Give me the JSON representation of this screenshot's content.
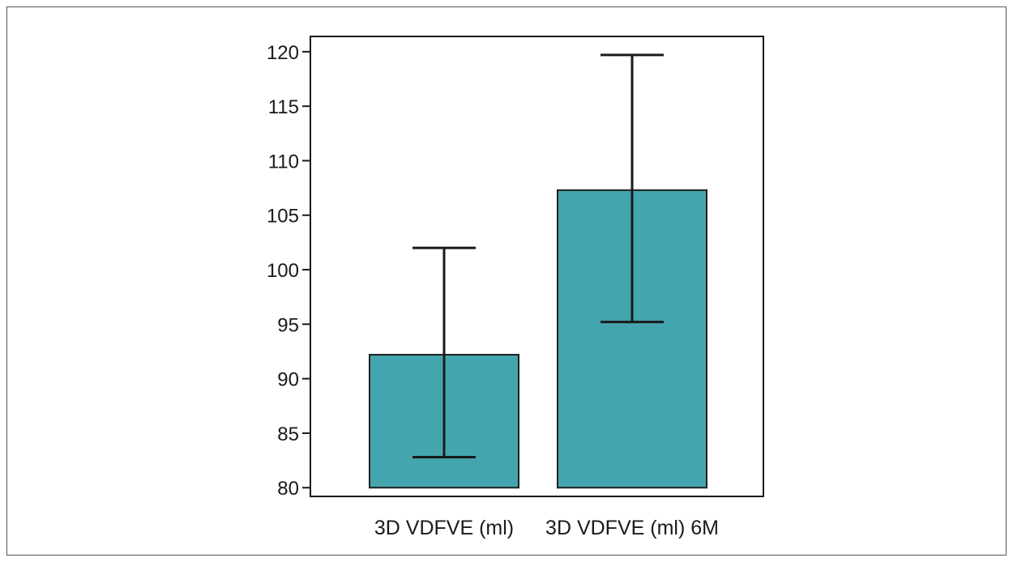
{
  "chart_data": {
    "type": "bar",
    "categories": [
      "3D VDFVE (ml)",
      "3D VDFVE (ml) 6M"
    ],
    "values": [
      92.2,
      107.3
    ],
    "error_low": [
      82.8,
      95.2
    ],
    "error_high": [
      102.0,
      119.7
    ],
    "ylim": [
      79.2,
      121.4
    ],
    "yticks": [
      80,
      85,
      90,
      95,
      100,
      105,
      110,
      115,
      120
    ],
    "title": "",
    "xlabel": "",
    "ylabel": "",
    "grid": false,
    "colors": {
      "bar_fill": "#44a5ae",
      "bar_stroke": "#1f1f1f",
      "axis": "#1a1a1a"
    }
  }
}
